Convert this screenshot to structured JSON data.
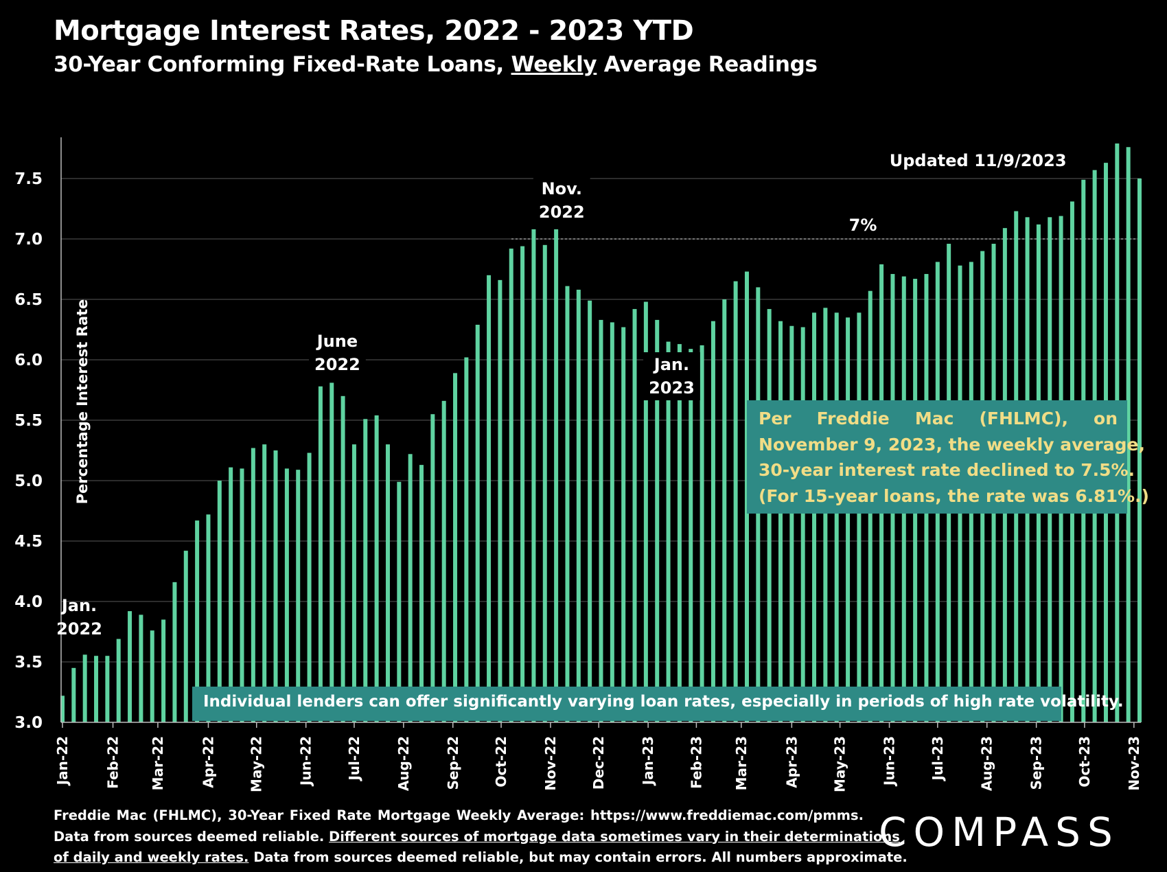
{
  "chart_data": {
    "type": "bar",
    "title": "Mortgage Interest Rates, 2022 - 2023 YTD",
    "subtitle_parts": [
      "30-Year Conforming Fixed-Rate Loans, ",
      "Weekly",
      " Average Readings"
    ],
    "ylabel": "Percentage Interest Rate",
    "ylim": [
      3.0,
      7.85
    ],
    "yticks": [
      "3.0",
      "3.5",
      "4.0",
      "4.5",
      "5.0",
      "5.5",
      "6.0",
      "6.5",
      "7.0",
      "7.5"
    ],
    "grid": "horizontal",
    "bar_color": "#5fd3a1",
    "month_labels": [
      {
        "label": "Jan-22",
        "week": 0
      },
      {
        "label": "Feb-22",
        "week": 4.5
      },
      {
        "label": "Mar-22",
        "week": 8.5
      },
      {
        "label": "Apr-22",
        "week": 13
      },
      {
        "label": "May-22",
        "week": 17.3
      },
      {
        "label": "Jun-22",
        "week": 21.7
      },
      {
        "label": "Jul-22",
        "week": 26
      },
      {
        "label": "Aug-22",
        "week": 30.4
      },
      {
        "label": "Sep-22",
        "week": 34.8
      },
      {
        "label": "Oct-22",
        "week": 39.1
      },
      {
        "label": "Nov-22",
        "week": 43.5
      },
      {
        "label": "Dec-22",
        "week": 47.8
      },
      {
        "label": "Jan-23",
        "week": 52.2
      },
      {
        "label": "Feb-23",
        "week": 56.5
      },
      {
        "label": "Mar-23",
        "week": 60.5
      },
      {
        "label": "Apr-23",
        "week": 65
      },
      {
        "label": "May-23",
        "week": 69.3
      },
      {
        "label": "Jun-23",
        "week": 73.7
      },
      {
        "label": "Jul-23",
        "week": 78
      },
      {
        "label": "Aug-23",
        "week": 82.4
      },
      {
        "label": "Sep-23",
        "week": 86.8
      },
      {
        "label": "Oct-23",
        "week": 91.1
      },
      {
        "label": "Nov-23",
        "week": 95.5
      }
    ],
    "values": [
      3.22,
      3.45,
      3.56,
      3.55,
      3.55,
      3.69,
      3.92,
      3.89,
      3.76,
      3.85,
      4.16,
      4.42,
      4.67,
      4.72,
      5.0,
      5.11,
      5.1,
      5.27,
      5.3,
      5.25,
      5.1,
      5.09,
      5.23,
      5.78,
      5.81,
      5.7,
      5.3,
      5.51,
      5.54,
      5.3,
      4.99,
      5.22,
      5.13,
      5.55,
      5.66,
      5.89,
      6.02,
      6.29,
      6.7,
      6.66,
      6.92,
      6.94,
      7.08,
      6.95,
      7.08,
      6.61,
      6.58,
      6.49,
      6.33,
      6.31,
      6.27,
      6.42,
      6.48,
      6.33,
      6.15,
      6.13,
      6.09,
      6.12,
      6.32,
      6.5,
      6.65,
      6.73,
      6.6,
      6.42,
      6.32,
      6.28,
      6.27,
      6.39,
      6.43,
      6.39,
      6.35,
      6.39,
      6.57,
      6.79,
      6.71,
      6.69,
      6.67,
      6.71,
      6.81,
      6.96,
      6.78,
      6.81,
      6.9,
      6.96,
      7.09,
      7.23,
      7.18,
      7.12,
      7.18,
      7.19,
      7.31,
      7.49,
      7.57,
      7.63,
      7.79,
      7.76,
      7.5
    ],
    "reference_line": {
      "value": 7.0,
      "label": "7%"
    },
    "annotations": [
      {
        "lines": [
          "Jan.",
          "2022"
        ],
        "week": 1.5
      },
      {
        "lines": [
          "June",
          "2022"
        ],
        "week": 24.5
      },
      {
        "lines": [
          "Nov.",
          "2022"
        ],
        "week": 44.5
      },
      {
        "lines": [
          "Jan.",
          "2023"
        ],
        "week": 54.3
      },
      {
        "lines": [
          "Updated 11/9/2023"
        ],
        "week": 81.6
      }
    ]
  },
  "note_box": {
    "lines": [
      "Per Freddie Mac (FHLMC), on",
      "November 9, 2023, the weekly average,",
      "30-year interest rate declined to 7.5%.",
      "(For 15-year loans, the rate was 6.81%.)"
    ]
  },
  "lender_note": "Individual lenders can offer significantly varying loan rates, especially in periods of high rate volatility.",
  "footer": {
    "line1": "Freddie Mac (FHLMC), 30-Year Fixed Rate Mortgage Weekly Average:   https://www.freddiemac.com/pmms.",
    "line2_a": "Data from sources deemed reliable. ",
    "line2_b": "Different sources of mortgage data sometimes vary in their determinations",
    "line3_a": "of daily and weekly rates.",
    "line3_b": " Data from sources deemed reliable, but may contain errors. All numbers approximate."
  },
  "logo": "COMPASS"
}
